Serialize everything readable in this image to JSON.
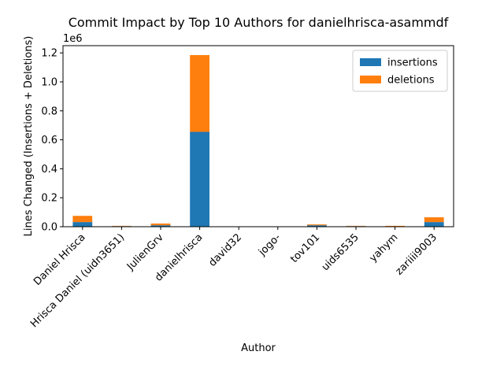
{
  "chart_data": {
    "type": "bar",
    "stacked": true,
    "title": "Commit Impact by Top 10 Authors for danielhrisca-asammdf",
    "xlabel": "Author",
    "ylabel": "Lines Changed (Insertions + Deletions)",
    "y_offset_label": "1e6",
    "ylim": [
      0,
      1.25
    ],
    "yticks": [
      0.0,
      0.2,
      0.4,
      0.6,
      0.8,
      1.0,
      1.2
    ],
    "ytick_labels": [
      "0.0",
      "0.2",
      "0.4",
      "0.6",
      "0.8",
      "1.0",
      "1.2"
    ],
    "grid": false,
    "legend_position": "top-right",
    "categories": [
      "Daniel Hrisca",
      "Hrisca Daniel (uidn3651)",
      "JulienGrv",
      "danielhrisca",
      "david32",
      "jogo-",
      "tov101",
      "uids6535",
      "yahym",
      "zariiii9003"
    ],
    "series": [
      {
        "name": "insertions",
        "color": "#1f77b4",
        "values": [
          0.032,
          0.004,
          0.01,
          0.655,
          0.001,
          0.001,
          0.01,
          0.004,
          0.002,
          0.032
        ]
      },
      {
        "name": "deletions",
        "color": "#ff7f0e",
        "values": [
          0.043,
          0.002,
          0.012,
          0.53,
          0.0005,
          0.0005,
          0.006,
          0.002,
          0.004,
          0.033
        ]
      }
    ]
  }
}
